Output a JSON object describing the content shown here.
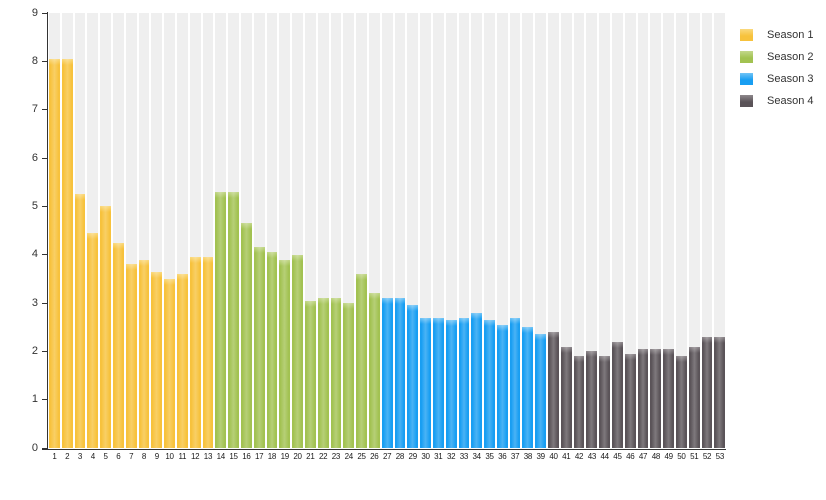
{
  "chart_data": {
    "type": "bar",
    "title": "",
    "xlabel": "",
    "ylabel": "",
    "ylim": [
      0,
      9
    ],
    "yticks": [
      0,
      1,
      2,
      3,
      4,
      5,
      6,
      7,
      8,
      9
    ],
    "grid": "vertical-stripes",
    "stripe_color": "#efefef",
    "legend_position": "top-right",
    "categories": [
      "1",
      "2",
      "3",
      "4",
      "5",
      "6",
      "7",
      "8",
      "9",
      "10",
      "11",
      "12",
      "13",
      "14",
      "15",
      "16",
      "17",
      "18",
      "19",
      "20",
      "21",
      "22",
      "23",
      "24",
      "25",
      "26",
      "27",
      "28",
      "29",
      "30",
      "31",
      "32",
      "33",
      "34",
      "35",
      "36",
      "37",
      "38",
      "39",
      "40",
      "41",
      "42",
      "43",
      "44",
      "45",
      "46",
      "47",
      "48",
      "49",
      "50",
      "51",
      "52",
      "53"
    ],
    "series": [
      {
        "name": "Season 1",
        "color": "#F7C23C",
        "color_light": "#FAD97E",
        "values": [
          8.05,
          8.05,
          5.25,
          4.45,
          5.0,
          4.25,
          3.8,
          3.9,
          3.65,
          3.5,
          3.6,
          3.95,
          3.95
        ]
      },
      {
        "name": "Season 2",
        "color": "#A2C251",
        "color_light": "#C3D78A",
        "values": [
          5.3,
          5.3,
          4.65,
          4.15,
          4.05,
          3.9,
          4.0,
          3.05,
          3.1,
          3.1,
          3.0,
          3.6,
          3.2
        ]
      },
      {
        "name": "Season 3",
        "color": "#189EF2",
        "color_light": "#71C4F6",
        "values": [
          3.1,
          3.1,
          2.95,
          2.7,
          2.7,
          2.65,
          2.7,
          2.8,
          2.65,
          2.55,
          2.7,
          2.5,
          2.35
        ]
      },
      {
        "name": "Season 4",
        "color": "#5A5358",
        "color_light": "#8E888C",
        "values": [
          2.4,
          2.1,
          1.9,
          2.0,
          1.9,
          2.2,
          1.95,
          2.05,
          2.05,
          2.05,
          1.9,
          2.1,
          2.3,
          2.3
        ]
      }
    ]
  }
}
